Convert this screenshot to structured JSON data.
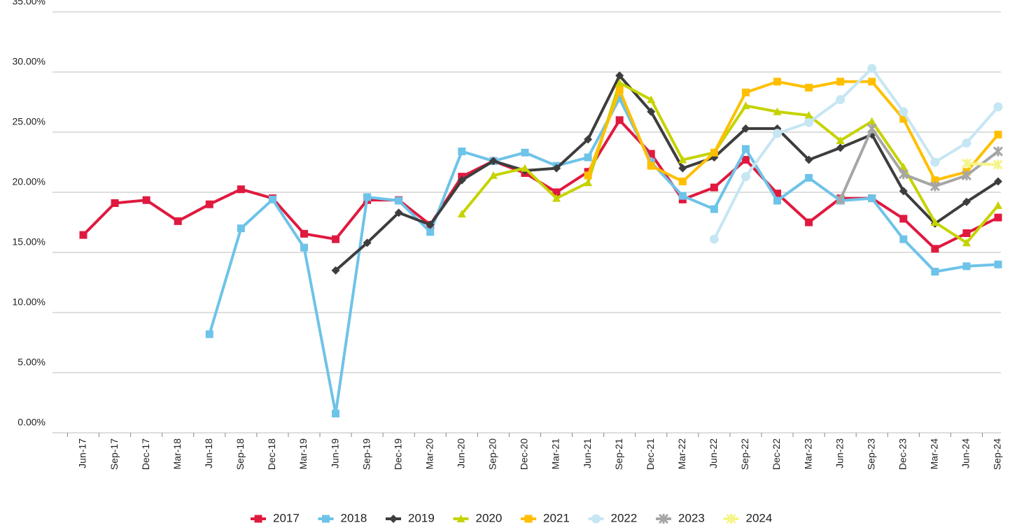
{
  "chart_data": {
    "type": "line",
    "categories": [
      "Jun-17",
      "Sep-17",
      "Dec-17",
      "Mar-18",
      "Jun-18",
      "Sep-18",
      "Dec-18",
      "Mar-19",
      "Jun-19",
      "Sep-19",
      "Dec-19",
      "Mar-20",
      "Jun-20",
      "Sep-20",
      "Dec-20",
      "Mar-21",
      "Jun-21",
      "Sep-21",
      "Dec-21",
      "Mar-22",
      "Jun-22",
      "Sep-22",
      "Dec-22",
      "Mar-23",
      "Jun-23",
      "Sep-23",
      "Dec-23",
      "Mar-24",
      "Jun-24",
      "Sep-24"
    ],
    "ylim": [
      0,
      35
    ],
    "yticks": [
      {
        "value": 0,
        "label": "0.00%"
      },
      {
        "value": 5,
        "label": "5.00%"
      },
      {
        "value": 10,
        "label": "10.00%"
      },
      {
        "value": 15,
        "label": "15.00%"
      },
      {
        "value": 20,
        "label": "20.00%"
      },
      {
        "value": 25,
        "label": "25.00%"
      },
      {
        "value": 30,
        "label": "30.00%"
      },
      {
        "value": 35,
        "label": "35.00%"
      }
    ],
    "grid": true,
    "legend": "bottom",
    "series": [
      {
        "name": "2017",
        "color": "#e0193f",
        "marker": "square",
        "values": [
          16.45,
          19.1,
          19.35,
          17.6,
          19.0,
          20.25,
          19.5,
          16.55,
          16.1,
          19.35,
          19.35,
          17.3,
          21.3,
          22.6,
          21.6,
          20.0,
          21.7,
          26.0,
          23.2,
          19.4,
          20.4,
          22.7,
          19.9,
          17.5,
          19.5,
          19.5,
          17.8,
          15.3,
          16.6,
          17.9
        ]
      },
      {
        "name": "2018",
        "color": "#6ec3e8",
        "marker": "square",
        "values": [
          null,
          null,
          null,
          null,
          8.2,
          17.0,
          19.4,
          15.4,
          1.6,
          19.6,
          19.3,
          16.7,
          23.4,
          22.6,
          23.3,
          22.2,
          22.9,
          27.8,
          22.5,
          19.7,
          18.6,
          23.6,
          19.3,
          21.2,
          19.3,
          19.5,
          16.1,
          13.4,
          13.85,
          14.0
        ]
      },
      {
        "name": "2019",
        "color": "#3d3d3d",
        "marker": "diamond",
        "values": [
          null,
          null,
          null,
          null,
          null,
          null,
          null,
          null,
          13.5,
          15.8,
          18.3,
          17.3,
          21.0,
          22.6,
          21.8,
          22.0,
          24.4,
          29.7,
          26.7,
          22.0,
          22.9,
          25.3,
          25.3,
          22.7,
          23.7,
          24.8,
          20.1,
          17.4,
          19.2,
          20.9
        ]
      },
      {
        "name": "2020",
        "color": "#c5d300",
        "marker": "triangle",
        "values": [
          null,
          null,
          null,
          null,
          null,
          null,
          null,
          null,
          null,
          null,
          null,
          null,
          18.2,
          21.4,
          22.0,
          19.5,
          20.8,
          29.1,
          27.7,
          22.7,
          23.3,
          27.2,
          26.7,
          26.4,
          24.3,
          25.9,
          22.1,
          17.5,
          15.8,
          18.9
        ]
      },
      {
        "name": "2021",
        "color": "#ffbf00",
        "marker": "square",
        "values": [
          null,
          null,
          null,
          null,
          null,
          null,
          null,
          null,
          null,
          null,
          null,
          null,
          null,
          null,
          null,
          null,
          21.4,
          28.5,
          22.2,
          20.9,
          23.3,
          28.3,
          29.2,
          28.7,
          29.2,
          29.2,
          26.1,
          21.0,
          21.7,
          24.8
        ]
      },
      {
        "name": "2022",
        "color": "#c6e6f3",
        "marker": "circle",
        "values": [
          null,
          null,
          null,
          null,
          null,
          null,
          null,
          null,
          null,
          null,
          null,
          null,
          null,
          null,
          null,
          null,
          null,
          null,
          null,
          null,
          16.1,
          21.3,
          24.9,
          25.8,
          27.7,
          30.3,
          26.7,
          22.5,
          24.1,
          27.1
        ]
      },
      {
        "name": "2023",
        "color": "#a6a6a6",
        "marker": "star",
        "values": [
          null,
          null,
          null,
          null,
          null,
          null,
          null,
          null,
          null,
          null,
          null,
          null,
          null,
          null,
          null,
          null,
          null,
          null,
          null,
          null,
          null,
          null,
          null,
          null,
          19.4,
          25.3,
          21.5,
          20.5,
          21.4,
          23.4
        ]
      },
      {
        "name": "2024",
        "color": "#f5f58a",
        "marker": "star",
        "values": [
          null,
          null,
          null,
          null,
          null,
          null,
          null,
          null,
          null,
          null,
          null,
          null,
          null,
          null,
          null,
          null,
          null,
          null,
          null,
          null,
          null,
          null,
          null,
          null,
          null,
          null,
          null,
          null,
          22.4,
          22.3
        ]
      }
    ]
  }
}
